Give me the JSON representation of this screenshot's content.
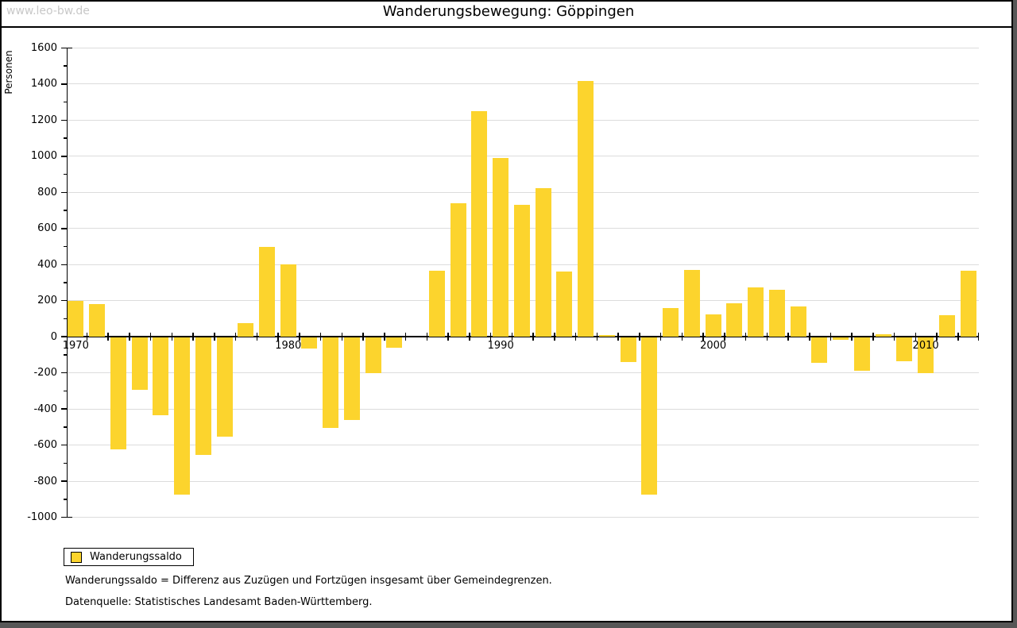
{
  "window": {
    "watermark": "www.leo-bw.de",
    "title": "Wanderungsbewegung: Göppingen"
  },
  "chart_data": {
    "type": "bar",
    "title": "Wanderungsbewegung: Göppingen",
    "xlabel": "",
    "ylabel": "Personen",
    "ylim": [
      -1000,
      1600
    ],
    "ytick_step": 200,
    "ytick_minor_step": 100,
    "grid": "horizontal",
    "legend_position": "bottom-left",
    "bar_color": "#fcd42d",
    "gridline_color": "#dcdcdc",
    "series_name": "Wanderungssaldo",
    "xticks": [
      1970,
      1980,
      1990,
      2000,
      2010
    ],
    "categories": [
      1970,
      1971,
      1972,
      1973,
      1974,
      1975,
      1976,
      1977,
      1978,
      1979,
      1980,
      1981,
      1982,
      1983,
      1984,
      1985,
      1986,
      1987,
      1988,
      1989,
      1990,
      1991,
      1992,
      1993,
      1994,
      1995,
      1996,
      1997,
      1998,
      1999,
      2000,
      2001,
      2002,
      2003,
      2004,
      2005,
      2006,
      2007,
      2008,
      2009,
      2010,
      2011,
      2012
    ],
    "values": [
      200,
      180,
      -620,
      -290,
      -430,
      -870,
      -650,
      -550,
      75,
      500,
      400,
      -60,
      -500,
      -455,
      -195,
      -55,
      0,
      365,
      740,
      1250,
      990,
      730,
      825,
      360,
      1415,
      10,
      -135,
      -870,
      160,
      370,
      125,
      185,
      275,
      260,
      170,
      -140,
      -10,
      -185,
      15,
      -130,
      -195,
      120,
      365
    ]
  },
  "legend": {
    "label": "Wanderungssaldo",
    "swatch_color": "#fcd42d"
  },
  "footnotes": {
    "line1": "Wanderungssaldo = Differenz aus Zuzügen und Fortzügen insgesamt über Gemeindegrenzen.",
    "line2": "Datenquelle: Statistisches Landesamt Baden-Württemberg."
  }
}
